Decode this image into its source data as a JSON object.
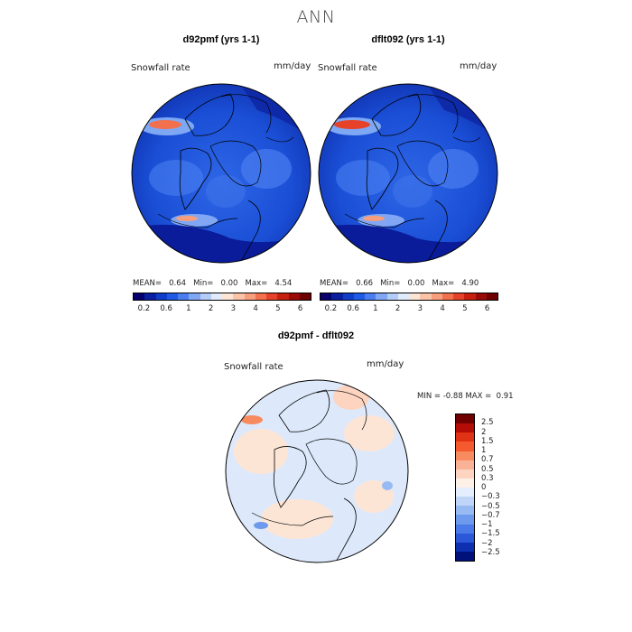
{
  "title": "ANN",
  "panels": [
    {
      "case_title": "d92pmf (yrs 1-1)",
      "field": "Snowfall rate",
      "units": "mm/day",
      "mean_label": "MEAN=",
      "mean_value": "0.64",
      "min_label": "Min=",
      "min_value": "0.00",
      "max_label": "Max=",
      "max_value": "4.54"
    },
    {
      "case_title": "dflt092 (yrs 1-1)",
      "field": "Snowfall rate",
      "units": "mm/day",
      "mean_label": "MEAN=",
      "mean_value": "0.66",
      "min_label": "Min=",
      "min_value": "0.00",
      "max_label": "Max=",
      "max_value": "4.90"
    }
  ],
  "abs_colorbar": {
    "colors": [
      "#08006e",
      "#0a1ea0",
      "#0f3cc8",
      "#1e5ae6",
      "#4a7ef0",
      "#80a6f4",
      "#b4ccf8",
      "#e0ecfc",
      "#fde5d6",
      "#fbc4a8",
      "#f89e7c",
      "#f2704e",
      "#e6422a",
      "#c8200e",
      "#9a0a06",
      "#6e0000"
    ],
    "ticks": [
      "0.2",
      "0.6",
      "1",
      "2",
      "3",
      "4",
      "5",
      "6"
    ]
  },
  "diff_panel": {
    "title": "d92pmf - dflt092",
    "field": "Snowfall rate",
    "units": "mm/day",
    "min_label": "MIN =",
    "min_value": "-0.88",
    "max_label": "MAX =",
    "max_value": "0.91"
  },
  "diff_colorbar": {
    "colors": [
      "#700000",
      "#b40c06",
      "#e03214",
      "#f45a2e",
      "#f88a60",
      "#fab296",
      "#fcd4c0",
      "#fdf0e6",
      "#e4eefc",
      "#c0d6f8",
      "#98baf2",
      "#6e9aee",
      "#4a7ae8",
      "#2a58d8",
      "#0c30b0",
      "#00127a"
    ],
    "labels": [
      "2.5",
      "2",
      "1.5",
      "1",
      "0.7",
      "0.5",
      "0.3",
      "0",
      "−0.3",
      "−0.5",
      "−0.7",
      "−1",
      "−1.5",
      "−2",
      "−2.5"
    ]
  },
  "colors": {
    "map_base": "#1a4fd6",
    "map_dark": "#0a1c9a",
    "diff_base": "#dde9fb",
    "coast": "#000000"
  }
}
